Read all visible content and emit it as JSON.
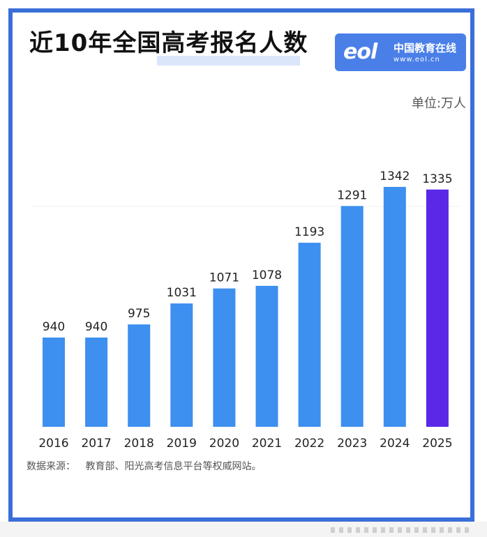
{
  "title": "近10年全国高考报名人数",
  "logo": {
    "mark": "eol",
    "name": "中国教育在线",
    "url": "www.eol.cn"
  },
  "unit": "单位:万人",
  "source": {
    "label": "数据来源：",
    "text": "教育部、阳光高考信息平台等权威网站。"
  },
  "colors": {
    "bar": "#3d8ff0",
    "highlight_bar": "#5a28e6",
    "frame": "#3a6ed8",
    "logo_bg": "#4a7fe8"
  },
  "chart_data": {
    "type": "bar",
    "categories": [
      "2016",
      "2017",
      "2018",
      "2019",
      "2020",
      "2021",
      "2022",
      "2023",
      "2024",
      "2025"
    ],
    "values": [
      940,
      940,
      975,
      1031,
      1071,
      1078,
      1193,
      1291,
      1342,
      1335
    ],
    "highlight_index": 9,
    "data_labels": true,
    "grid": false,
    "legend": "none"
  }
}
